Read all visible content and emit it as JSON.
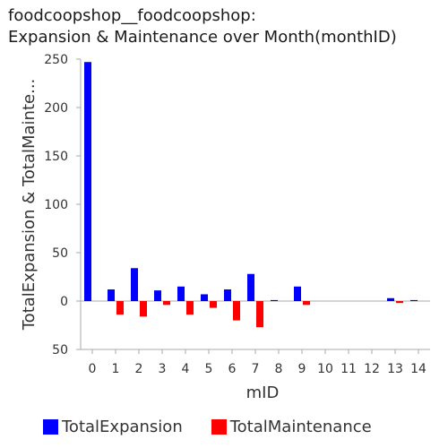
{
  "chart_data": {
    "type": "bar",
    "title_lines": [
      "foodcoopshop__foodcoopshop:",
      "Expansion & Maintenance over Month(monthID)"
    ],
    "xlabel": "mID",
    "ylabel": "TotalExpansion & TotalMainte...",
    "categories": [
      "0",
      "1",
      "2",
      "3",
      "4",
      "5",
      "6",
      "7",
      "8",
      "9",
      "10",
      "11",
      "12",
      "13",
      "14"
    ],
    "ylim": [
      -50,
      250
    ],
    "yticks": [
      250,
      200,
      150,
      100,
      50,
      0,
      -50
    ],
    "ytick_labels": [
      "250",
      "200",
      "150",
      "100",
      "50",
      "0",
      "50"
    ],
    "grid": false,
    "legend_position": "bottom",
    "series": [
      {
        "name": "TotalExpansion",
        "color": "#0000ff",
        "values": [
          247,
          12,
          34,
          11,
          15,
          7,
          12,
          28,
          1,
          15,
          0,
          0,
          0,
          3,
          1
        ]
      },
      {
        "name": "TotalMaintenance",
        "color": "#ff0000",
        "values": [
          0,
          -14,
          -16,
          -4,
          -14,
          -7,
          -20,
          -27,
          0,
          -4,
          0,
          0,
          0,
          -2,
          0
        ]
      }
    ]
  }
}
